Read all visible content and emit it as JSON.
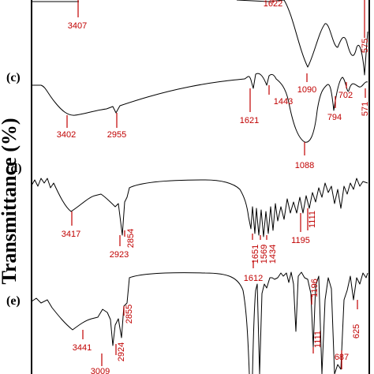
{
  "chart_data": {
    "type": "line",
    "ylabel": "Transmittance (%)",
    "xlabel": "",
    "x_unit": "cm-1",
    "x_reversed": true,
    "colors": {
      "line": "#000000",
      "peak_marker": "#c00000"
    },
    "panels": [
      {
        "label": "",
        "partial": true,
        "peaks": [
          {
            "x": 3407,
            "label": "3407"
          },
          {
            "x": 1622,
            "label": "1622"
          },
          {
            "x": 575,
            "label": "575"
          }
        ]
      },
      {
        "label": "(c)",
        "peaks": [
          {
            "x": 3402,
            "label": "3402"
          },
          {
            "x": 2955,
            "label": "2955"
          },
          {
            "x": 1621,
            "label": "1621"
          },
          {
            "x": 1443,
            "label": "1443"
          },
          {
            "x": 1090,
            "label": "1090"
          },
          {
            "x": 1088,
            "label": "1088"
          },
          {
            "x": 794,
            "label": "794"
          },
          {
            "x": 702,
            "label": "702"
          },
          {
            "x": 571,
            "label": "571"
          }
        ]
      },
      {
        "label": "(d)",
        "peaks": [
          {
            "x": 3417,
            "label": "3417"
          },
          {
            "x": 2923,
            "label": "2923"
          },
          {
            "x": 2854,
            "label": "2854"
          },
          {
            "x": 1651,
            "label": "1651"
          },
          {
            "x": 1612,
            "label": "1612"
          },
          {
            "x": 1569,
            "label": "1569"
          },
          {
            "x": 1434,
            "label": "1434"
          },
          {
            "x": 1195,
            "label": "1195"
          },
          {
            "x": 1111,
            "label": "1111"
          }
        ]
      },
      {
        "label": "(e)",
        "peaks": [
          {
            "x": 3441,
            "label": "3441"
          },
          {
            "x": 2924,
            "label": "2924"
          },
          {
            "x": 2855,
            "label": "2855"
          },
          {
            "x": 3009,
            "label": "3009"
          },
          {
            "x": 1196,
            "label": "1196"
          },
          {
            "x": 1111,
            "label": "1111"
          },
          {
            "x": 687,
            "label": "687"
          },
          {
            "x": 625,
            "label": "625"
          }
        ]
      }
    ]
  }
}
